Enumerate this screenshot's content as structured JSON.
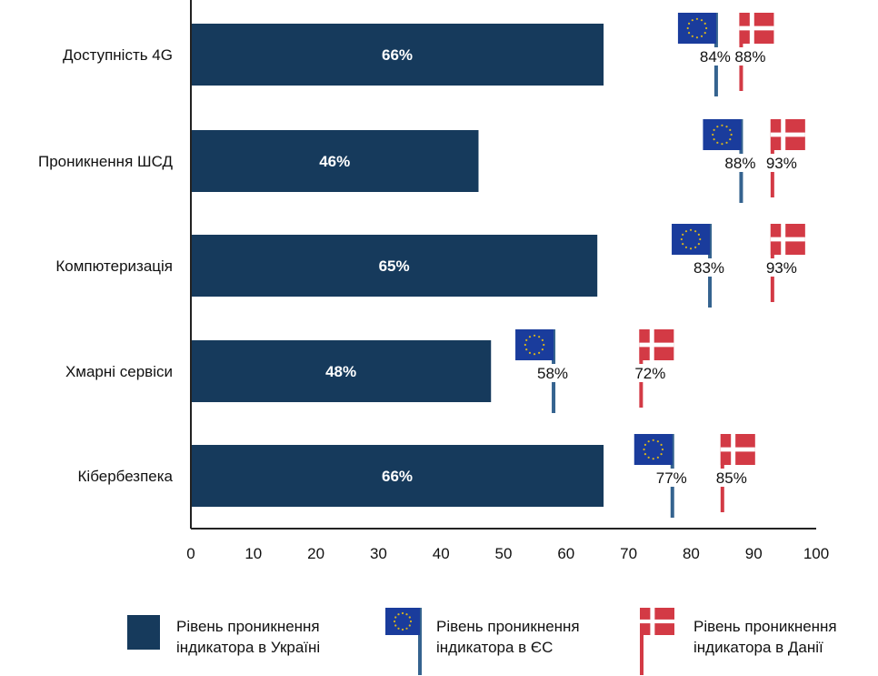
{
  "colors": {
    "bar": "#163a5c",
    "eu": "#1a3c9c",
    "eu_star": "#d9b51c",
    "denmark": "#d33a45",
    "eu_pole": "#35638f",
    "dk_pole": "#d33a45",
    "axis": "#222222"
  },
  "chart_data": {
    "type": "bar",
    "orientation": "horizontal",
    "categories": [
      "Доступність 4G",
      "Проникнення ШСД",
      "Компютеризація",
      "Хмарні сервіси",
      "Кібербезпека"
    ],
    "series": [
      {
        "name": "Рівень проникнення індикатора в Україні",
        "values": [
          66,
          46,
          65,
          48,
          66
        ],
        "labels": [
          "66%",
          "46%",
          "65%",
          "48%",
          "66%"
        ]
      },
      {
        "name": "Рівень проникнення індикатора в ЄС",
        "values": [
          84,
          88,
          83,
          58,
          77
        ],
        "labels": [
          "84%",
          "88%",
          "83%",
          "58%",
          "77%"
        ]
      },
      {
        "name": "Рівень проникнення індикатора в Данії",
        "values": [
          88,
          93,
          93,
          72,
          85
        ],
        "labels": [
          "88%",
          "93%",
          "93%",
          "72%",
          "85%"
        ]
      }
    ],
    "xlim": [
      0,
      100
    ],
    "xticks": [
      "0",
      "10",
      "20",
      "30",
      "40",
      "50",
      "60",
      "70",
      "80",
      "90",
      "100"
    ],
    "grid": false,
    "legend_position": "bottom"
  },
  "legend": {
    "ukraine": {
      "line1": "Рівень проникнення",
      "line2": "індикатора в Україні",
      "icon": "bar-swatch"
    },
    "eu": {
      "line1": "Рівень проникнення",
      "line2": "індикатора в ЄС",
      "icon": "eu-flag-icon"
    },
    "denmark": {
      "line1": "Рівень проникнення",
      "line2": "індикатора в Данії",
      "icon": "denmark-flag-icon"
    }
  }
}
